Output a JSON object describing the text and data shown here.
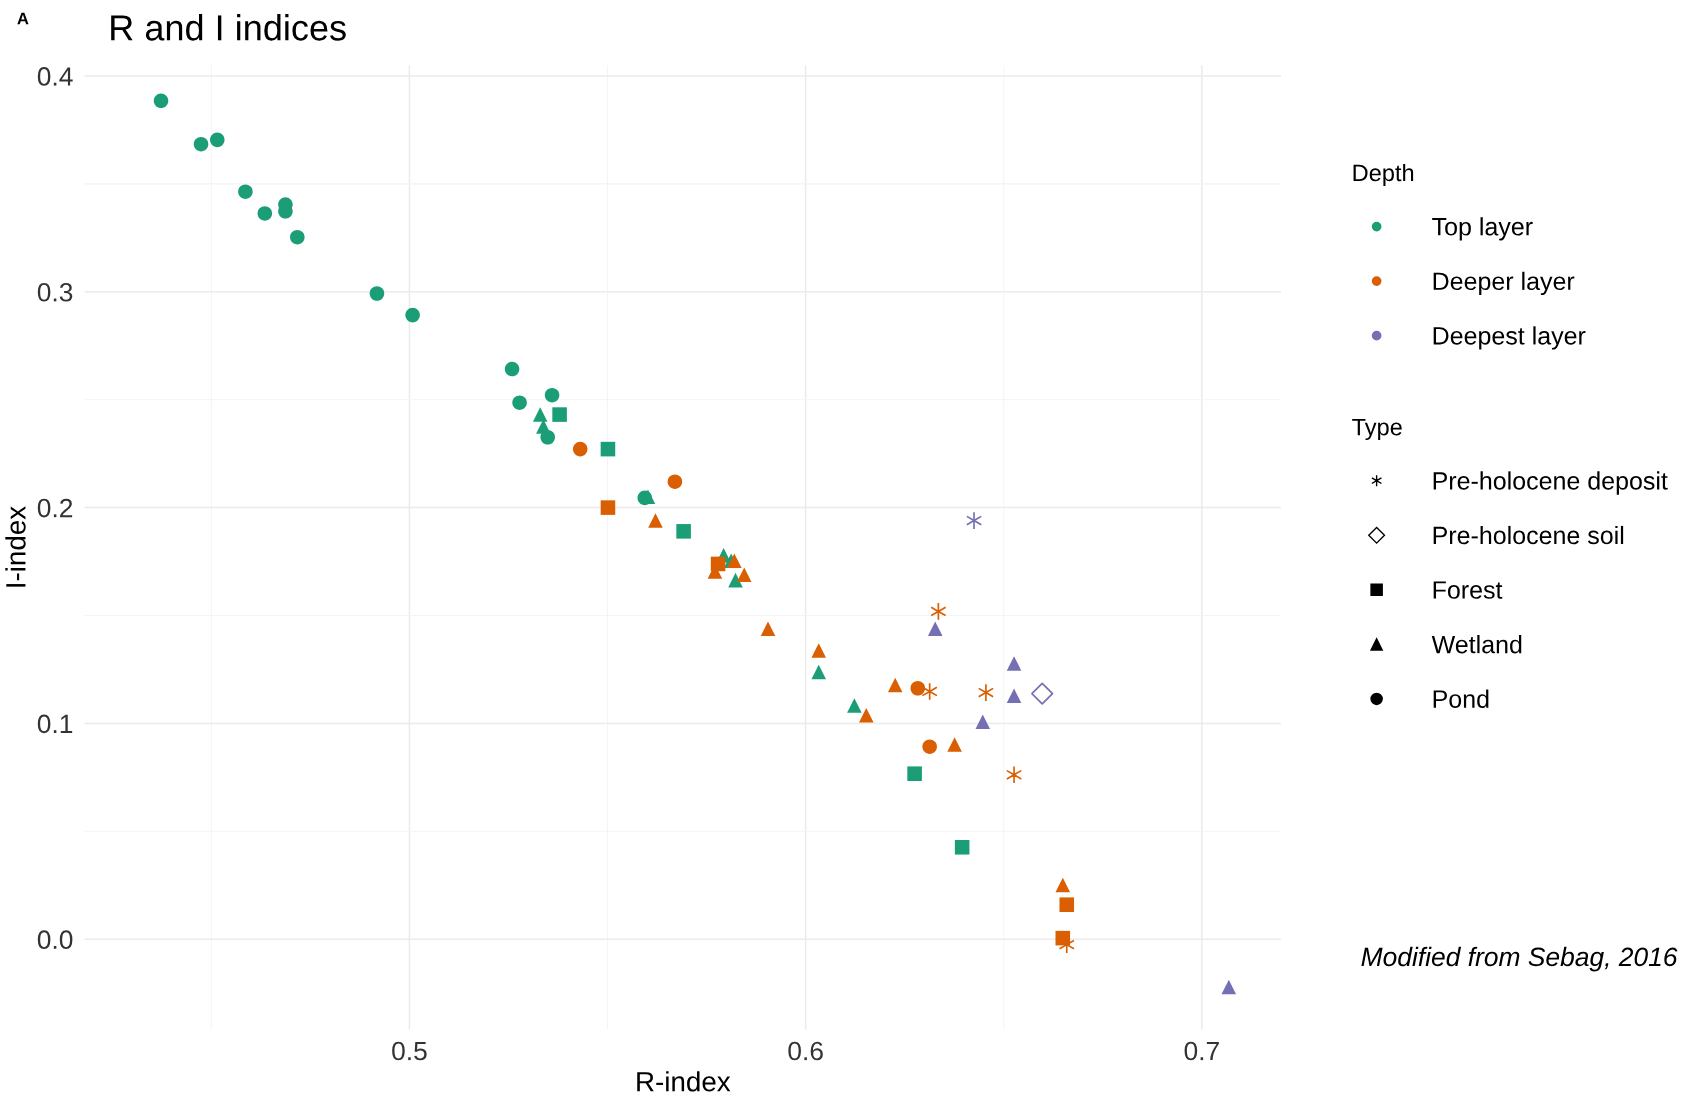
{
  "chart_data": {
    "type": "scatter",
    "title": "R and I indices",
    "xlabel": "R-index",
    "ylabel": "I-index",
    "legend_title": [
      "Depth",
      "Type"
    ],
    "xlim": [
      0.418,
      0.72
    ],
    "ylim": [
      -0.042,
      0.405
    ],
    "xticks": [
      0.5,
      0.6,
      0.7
    ],
    "yticks": [
      {
        "value": 0,
        "label": "0.0"
      },
      0.1,
      0.2,
      0.3,
      0.4
    ],
    "grid": true,
    "legend": "right",
    "annotations": [
      "A",
      "Modified from Sebag, 2016"
    ],
    "series": [
      {
        "name": "Top layer",
        "color": "#1b9e77"
      },
      {
        "name": "Deeper layer",
        "color": "#d95f02"
      },
      {
        "name": "Deepest layer",
        "color": "#7570b3"
      },
      {
        "name": "Pre-holocene deposit",
        "color": "#000000",
        "marker": "cross"
      },
      {
        "name": "Pre-holocene soil",
        "color": "#000000",
        "marker": "diamond"
      },
      {
        "name": "Forest",
        "color": "#000000",
        "marker": "square"
      },
      {
        "name": "Wetland",
        "color": "#000000",
        "marker": "triangle"
      },
      {
        "name": "Pond",
        "color": "#000000",
        "marker": "circle"
      },
      {
        "color": "#1b9e77",
        "marker": "circle",
        "x": [
          0.4373,
          0.4474,
          0.4515,
          0.4586,
          0.4635,
          0.4687,
          0.4687,
          0.4717,
          0.4918,
          0.5008,
          0.5259,
          0.5278,
          0.536,
          0.5349,
          0.5594
        ],
        "values": [
          0.3885,
          0.3684,
          0.3704,
          0.3464,
          0.3363,
          0.3404,
          0.3373,
          0.3253,
          0.2992,
          0.2892,
          0.2642,
          0.2486,
          0.2521,
          0.2326,
          0.2045
        ]
      },
      {
        "color": "#1b9e77",
        "marker": "square",
        "x": [
          0.5379,
          0.5501,
          0.5692,
          0.6275,
          0.6395
        ],
        "values": [
          0.2431,
          0.2271,
          0.189,
          0.0767,
          0.0426
        ]
      },
      {
        "color": "#1b9e77",
        "marker": "triangle",
        "x": [
          0.533,
          0.5338,
          0.5602,
          0.5793,
          0.5812,
          0.5823,
          0.6033,
          0.6123
        ],
        "values": [
          0.2431,
          0.2376,
          0.205,
          0.1779,
          0.1754,
          0.1664,
          0.1238,
          0.1083
        ]
      },
      {
        "color": "#d95f02",
        "marker": "circle",
        "x": [
          0.5431,
          0.567,
          0.6283,
          0.6313
        ],
        "values": [
          0.2271,
          0.212,
          0.1163,
          0.0892
        ]
      },
      {
        "color": "#d95f02",
        "marker": "square",
        "x": [
          0.5501,
          0.5779,
          0.6649,
          0.6659
        ],
        "values": [
          0.2,
          0.1739,
          0.0005,
          0.016
        ]
      },
      {
        "color": "#d95f02",
        "marker": "triangle",
        "x": [
          0.5621,
          0.5771,
          0.582,
          0.5845,
          0.5905,
          0.6033,
          0.6226,
          0.6153,
          0.6376,
          0.6649
        ],
        "values": [
          0.194,
          0.1704,
          0.1754,
          0.1689,
          0.1439,
          0.1338,
          0.1178,
          0.1038,
          0.0902,
          0.0251
        ]
      },
      {
        "color": "#d95f02",
        "marker": "cross",
        "x": [
          0.6335,
          0.6313,
          0.6455,
          0.6526,
          0.6659
        ],
        "values": [
          0.1519,
          0.1148,
          0.1143,
          0.0762,
          -0.0025
        ]
      },
      {
        "color": "#7570b3",
        "marker": "triangle",
        "x": [
          0.6327,
          0.6526,
          0.6526,
          0.6447,
          0.7068
        ],
        "values": [
          0.1439,
          0.1278,
          0.1128,
          0.1008,
          -0.0221
        ]
      },
      {
        "color": "#7570b3",
        "marker": "cross",
        "x": [
          0.6425
        ],
        "values": [
          0.194
        ]
      },
      {
        "color": "#7570b3",
        "marker": "diamond",
        "x": [
          0.6597
        ],
        "values": [
          0.1138
        ]
      }
    ]
  }
}
